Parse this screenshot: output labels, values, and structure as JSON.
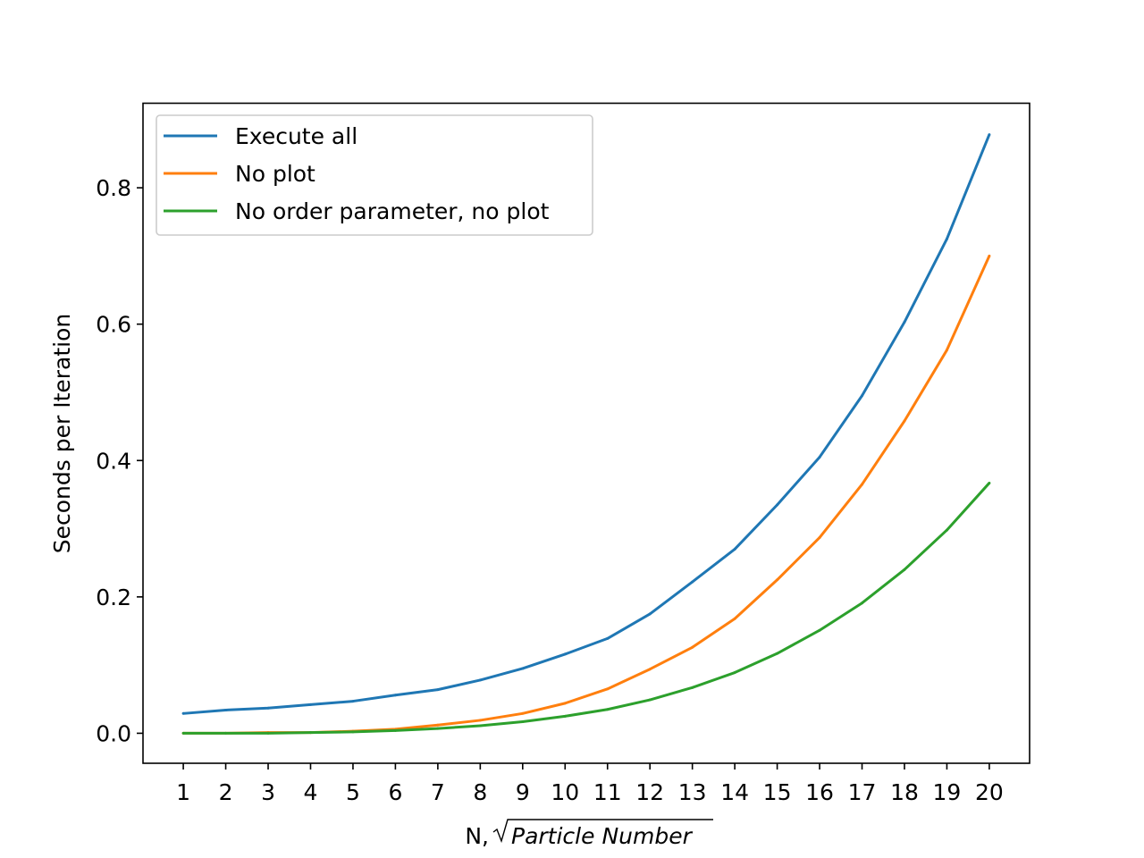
{
  "chart_data": {
    "type": "line",
    "title": "",
    "xlabel_prefix": "N, ",
    "xlabel_sqrt_arg": "Particle Number",
    "ylabel": "Seconds per Iteration",
    "x": [
      1,
      2,
      3,
      4,
      5,
      6,
      7,
      8,
      9,
      10,
      11,
      12,
      13,
      14,
      15,
      16,
      17,
      18,
      19,
      20
    ],
    "xtick_labels": [
      "1",
      "2",
      "3",
      "4",
      "5",
      "6",
      "7",
      "8",
      "9",
      "10",
      "11",
      "12",
      "13",
      "14",
      "15",
      "16",
      "17",
      "18",
      "19",
      "20"
    ],
    "ytick_values": [
      0.0,
      0.2,
      0.4,
      0.6,
      0.8
    ],
    "ytick_labels": [
      "0.0",
      "0.2",
      "0.4",
      "0.6",
      "0.8"
    ],
    "xlim": [
      0.05,
      20.95
    ],
    "ylim": [
      -0.044,
      0.924
    ],
    "grid": false,
    "legend_position": "upper-left",
    "series": [
      {
        "name": "Execute all",
        "color": "#1f77b4",
        "values": [
          0.029,
          0.034,
          0.037,
          0.042,
          0.047,
          0.056,
          0.064,
          0.078,
          0.095,
          0.116,
          0.139,
          0.175,
          0.222,
          0.27,
          0.335,
          0.405,
          0.495,
          0.603,
          0.725,
          0.878
        ]
      },
      {
        "name": "No plot",
        "color": "#ff7f0e",
        "values": [
          0.0,
          0.0,
          0.001,
          0.001,
          0.003,
          0.006,
          0.012,
          0.019,
          0.029,
          0.044,
          0.065,
          0.094,
          0.126,
          0.168,
          0.225,
          0.287,
          0.365,
          0.458,
          0.562,
          0.7
        ]
      },
      {
        "name": "No order parameter, no plot",
        "color": "#2ca02c",
        "values": [
          0.0,
          0.0,
          0.0,
          0.001,
          0.002,
          0.004,
          0.007,
          0.011,
          0.017,
          0.025,
          0.035,
          0.049,
          0.067,
          0.089,
          0.117,
          0.151,
          0.191,
          0.24,
          0.298,
          0.367
        ]
      }
    ]
  }
}
